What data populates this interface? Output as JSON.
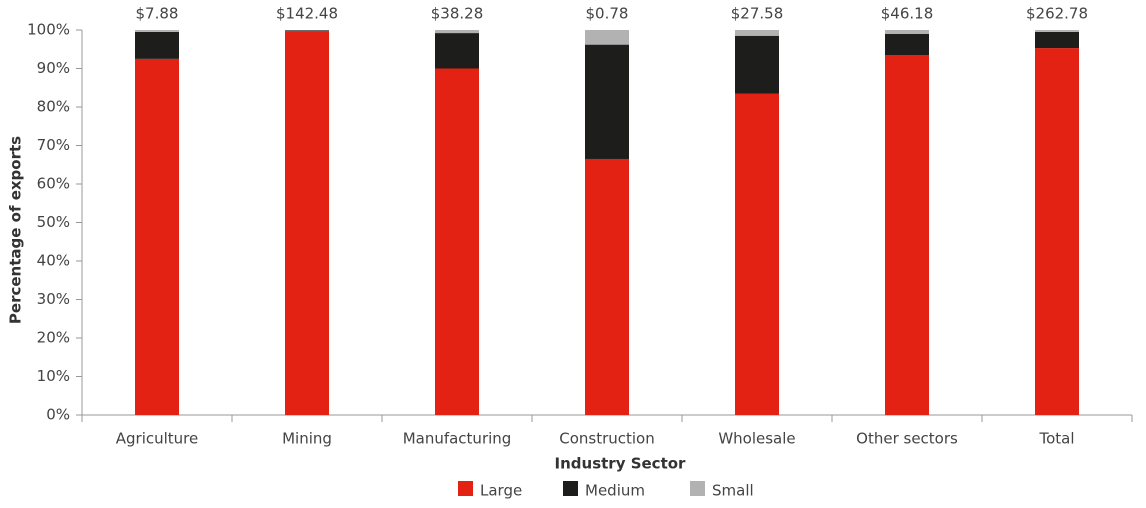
{
  "chart_data": {
    "type": "stacked_bar",
    "x_label": "Industry Sector",
    "y_label": "Percentage of exports",
    "categories": [
      "Agriculture",
      "Mining",
      "Manufacturing",
      "Construction",
      "Wholesale",
      "Other sectors",
      "Total"
    ],
    "series": [
      {
        "name": "Large",
        "color": "#e32213",
        "values": [
          92.5,
          99.7,
          90,
          66.5,
          83.5,
          93.5,
          95.3
        ]
      },
      {
        "name": "Medium",
        "color": "#1d1d1b",
        "values": [
          7,
          0.2,
          9.2,
          29.7,
          15,
          5.5,
          4.2
        ]
      },
      {
        "name": "Small",
        "color": "#b2b2b2",
        "values": [
          0.5,
          0.1,
          0.8,
          3.8,
          1.5,
          1,
          0.5
        ]
      }
    ],
    "totals": {
      "values": [
        7.88,
        142.48,
        38.28,
        0.78,
        27.58,
        46.18,
        262.78
      ],
      "value_labels": [
        "$7.88",
        "$142.48",
        "$38.28",
        "$0.78",
        "$27.58",
        "$46.18",
        "$262.78"
      ]
    },
    "ylim": [
      0,
      100
    ],
    "yticks": [
      {
        "value": 0,
        "label": "0%"
      },
      {
        "value": 10,
        "label": "10%"
      },
      {
        "value": 20,
        "label": "20%"
      },
      {
        "value": 30,
        "label": "30%"
      },
      {
        "value": 40,
        "label": "40%"
      },
      {
        "value": 50,
        "label": "50%"
      },
      {
        "value": 60,
        "label": "60%"
      },
      {
        "value": 70,
        "label": "70%"
      },
      {
        "value": 80,
        "label": "80%"
      },
      {
        "value": 90,
        "label": "90%"
      },
      {
        "value": 100,
        "label": "100%"
      }
    ],
    "legend": "bottom"
  }
}
